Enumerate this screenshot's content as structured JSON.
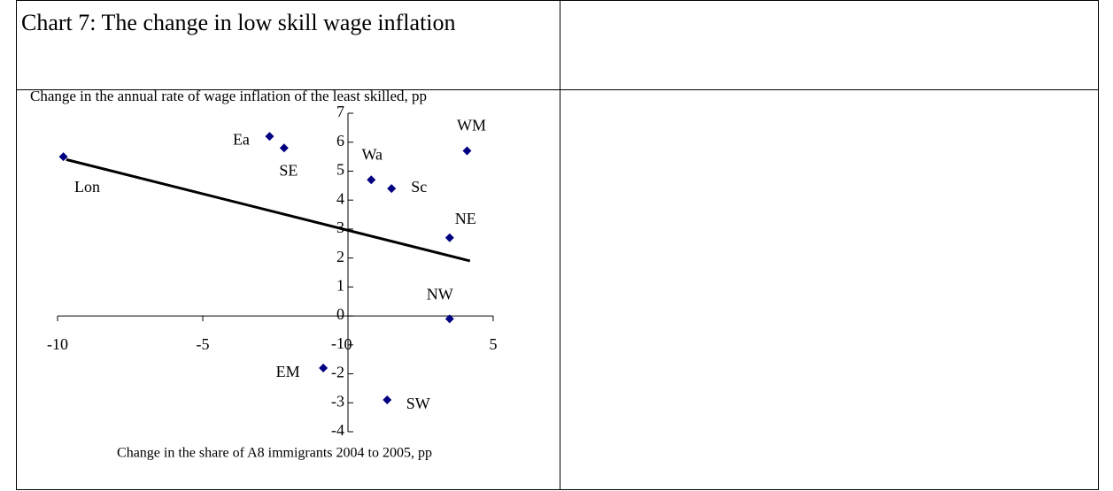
{
  "chart_data": {
    "type": "scatter",
    "title": "Chart 7: The change in low skill wage inflation",
    "y_label": "Change in the annual rate of wage inflation of the least skilled, pp",
    "x_label": "Change in the share of A8 immigrants 2004 to 2005, pp",
    "labels": [
      "Lon",
      "Ea",
      "SE",
      "Wa",
      "Sc",
      "WM",
      "NE",
      "NW",
      "EM",
      "SW"
    ],
    "x": [
      -9.8,
      -2.7,
      -2.2,
      0.8,
      1.5,
      4.1,
      3.5,
      3.5,
      -0.85,
      1.35
    ],
    "values": [
      5.5,
      6.2,
      5.8,
      4.7,
      4.4,
      5.7,
      2.7,
      -0.1,
      -1.8,
      -2.9
    ],
    "color": "#000080",
    "trendline": {
      "x": [
        -9.7,
        4.2
      ],
      "values": [
        5.4,
        1.9
      ],
      "color": "#000000"
    },
    "xlim": [
      -10,
      5
    ],
    "xticks": [
      -10,
      -5,
      0,
      5
    ],
    "ylim": [
      -4,
      7
    ],
    "yticks": [
      -4,
      -3,
      -2,
      -1,
      0,
      1,
      2,
      3,
      4,
      5,
      6,
      7
    ]
  }
}
